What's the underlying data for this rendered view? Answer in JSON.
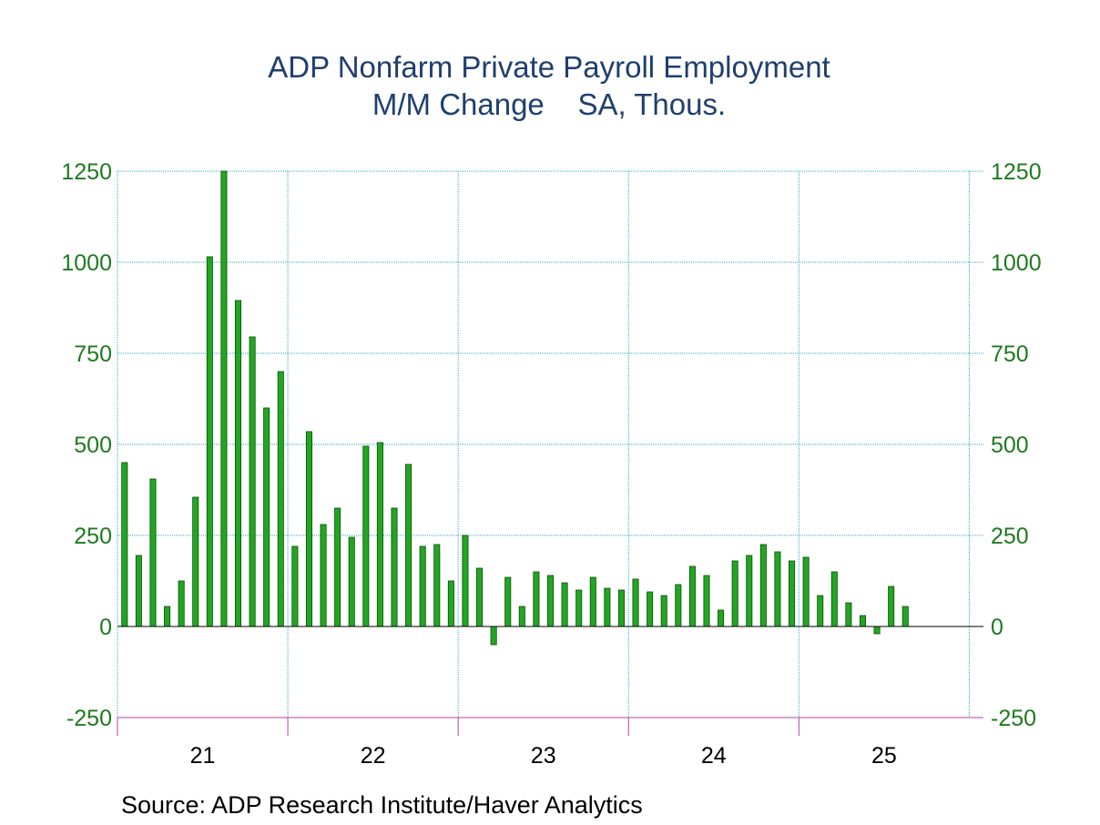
{
  "chart_data": {
    "type": "bar",
    "title": "ADP Nonfarm Private Payroll Employment",
    "subtitle": "M/M Change    SA, Thous.",
    "source": "Source:  ADP Research Institute/Haver Analytics",
    "ylim": [
      -250,
      1250
    ],
    "y_ticks": [
      -250,
      0,
      250,
      500,
      750,
      1000,
      1250
    ],
    "y_tick_labels": [
      "-250",
      "0",
      "250",
      "500",
      "750",
      "1000",
      "1250"
    ],
    "x_tick_labels": [
      "21",
      "22",
      "23",
      "24",
      "25"
    ],
    "grid": true,
    "colors": {
      "bar": "#22a622",
      "bar_edge": "#0b4d0b",
      "grid": "#2aa9c9",
      "year_tick": "#b040b0",
      "axis_text": "#1e7a1e",
      "title": "#1f3f6e"
    },
    "start_month": "2021-01",
    "values": [
      450,
      195,
      405,
      55,
      125,
      355,
      1015,
      1250,
      895,
      795,
      600,
      700,
      220,
      535,
      280,
      325,
      245,
      495,
      505,
      325,
      445,
      220,
      225,
      125,
      250,
      160,
      -50,
      135,
      55,
      150,
      140,
      120,
      100,
      135,
      105,
      100,
      130,
      95,
      85,
      115,
      165,
      140,
      45,
      180,
      195,
      225,
      205,
      180,
      190,
      85,
      150,
      65,
      30,
      -20,
      110,
      55
    ]
  }
}
